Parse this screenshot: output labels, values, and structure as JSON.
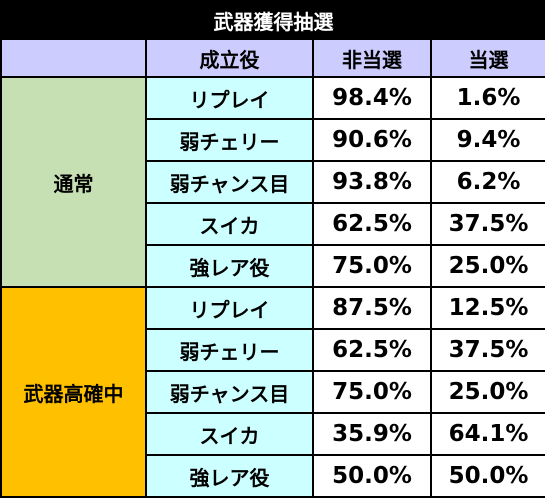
{
  "title": "武器獲得抽選",
  "header": {
    "role": "成立役",
    "miss": "非当選",
    "hit": "当選"
  },
  "groups": [
    {
      "name": "通常",
      "rows": [
        {
          "role": "リプレイ",
          "miss": "98.4%",
          "hit": "1.6%"
        },
        {
          "role": "弱チェリー",
          "miss": "90.6%",
          "hit": "9.4%"
        },
        {
          "role": "弱チャンス目",
          "miss": "93.8%",
          "hit": "6.2%"
        },
        {
          "role": "スイカ",
          "miss": "62.5%",
          "hit": "37.5%"
        },
        {
          "role": "強レア役",
          "miss": "75.0%",
          "hit": "25.0%"
        }
      ]
    },
    {
      "name": "武器高確中",
      "rows": [
        {
          "role": "リプレイ",
          "miss": "87.5%",
          "hit": "12.5%"
        },
        {
          "role": "弱チェリー",
          "miss": "62.5%",
          "hit": "37.5%"
        },
        {
          "role": "弱チャンス目",
          "miss": "75.0%",
          "hit": "25.0%"
        },
        {
          "role": "スイカ",
          "miss": "35.9%",
          "hit": "64.1%"
        },
        {
          "role": "強レア役",
          "miss": "50.0%",
          "hit": "50.0%"
        }
      ]
    }
  ],
  "colors": {
    "title_bg": "#000000",
    "header_bg": "#ccccff",
    "group_normal_bg": "#c6e0b4",
    "group_high_bg": "#ffc000",
    "role_bg": "#ccffff"
  }
}
